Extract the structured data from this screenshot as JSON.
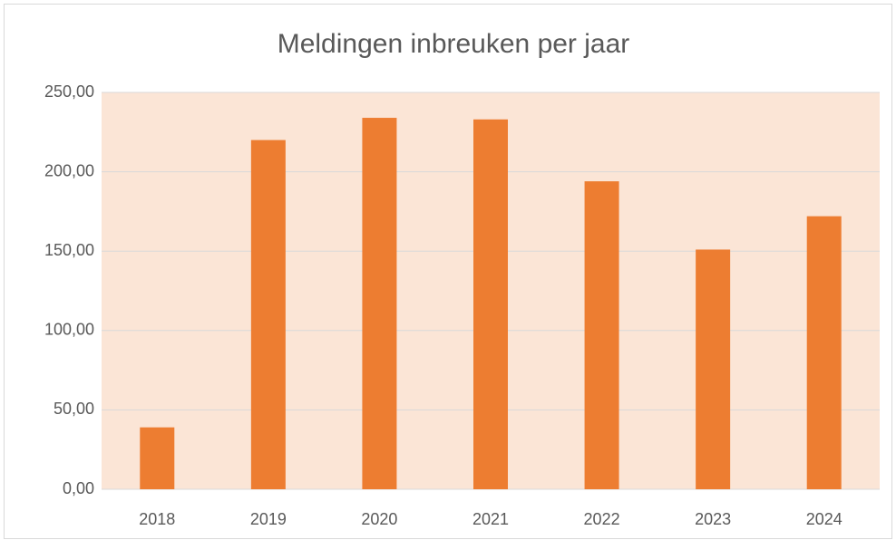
{
  "chart_data": {
    "type": "bar",
    "title": "Meldingen inbreuken per jaar",
    "categories": [
      "2018",
      "2019",
      "2020",
      "2021",
      "2022",
      "2023",
      "2024"
    ],
    "values": [
      39,
      220,
      234,
      233,
      194,
      151,
      172
    ],
    "color": "#ed7d31",
    "plot_background": "#fbe5d6",
    "ylim": [
      0,
      250
    ],
    "yticks": [
      {
        "value": 0,
        "label": "0,00"
      },
      {
        "value": 50,
        "label": "50,00"
      },
      {
        "value": 100,
        "label": "100,00"
      },
      {
        "value": 150,
        "label": "150,00"
      },
      {
        "value": 200,
        "label": "200,00"
      },
      {
        "value": 250,
        "label": "250,00"
      }
    ],
    "grid": true
  }
}
